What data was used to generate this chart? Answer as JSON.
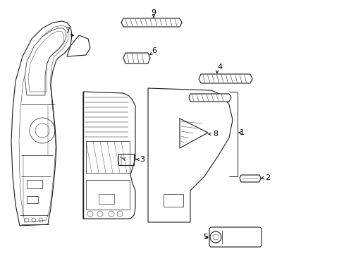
{
  "background_color": "#ffffff",
  "line_color": "#1a1a1a",
  "line_width": 0.8,
  "thin_line": 0.5,
  "text_color": "#000000",
  "label_fontsize": 8,
  "arrow_color": "#000000"
}
